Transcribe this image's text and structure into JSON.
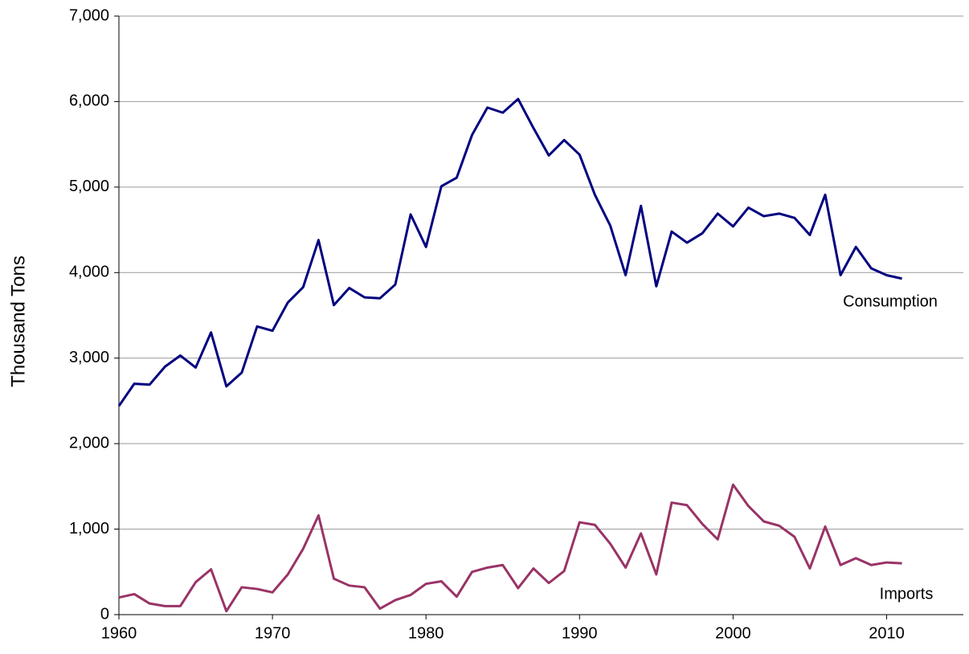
{
  "chart_data": {
    "type": "line",
    "y_label": "Thousand Tons",
    "x": [
      1960,
      1961,
      1962,
      1963,
      1964,
      1965,
      1966,
      1967,
      1968,
      1969,
      1970,
      1971,
      1972,
      1973,
      1974,
      1975,
      1976,
      1977,
      1978,
      1979,
      1980,
      1981,
      1982,
      1983,
      1984,
      1985,
      1986,
      1987,
      1988,
      1989,
      1990,
      1991,
      1992,
      1993,
      1994,
      1995,
      1996,
      1997,
      1998,
      1999,
      2000,
      2001,
      2002,
      2003,
      2004,
      2005,
      2006,
      2007,
      2008,
      2009,
      2010,
      2011
    ],
    "series": [
      {
        "name": "Consumption",
        "color": "#000080",
        "values": [
          2440,
          2700,
          2690,
          2900,
          3030,
          2890,
          3300,
          2670,
          2830,
          3370,
          3320,
          3650,
          3830,
          4380,
          3620,
          3820,
          3710,
          3700,
          3860,
          4680,
          4300,
          5010,
          5110,
          5610,
          5930,
          5870,
          6030,
          5690,
          5370,
          5550,
          5380,
          4910,
          4550,
          3970,
          4780,
          3840,
          4480,
          4350,
          4460,
          4690,
          4540,
          4760,
          4660,
          4690,
          4640,
          4440,
          4910,
          3970,
          4300,
          4050,
          3970,
          3930
        ]
      },
      {
        "name": "Imports",
        "color": "#993366",
        "values": [
          200,
          240,
          130,
          100,
          100,
          380,
          530,
          40,
          320,
          300,
          260,
          470,
          770,
          1160,
          420,
          340,
          320,
          70,
          170,
          230,
          360,
          390,
          210,
          500,
          550,
          580,
          310,
          540,
          370,
          510,
          1080,
          1050,
          830,
          550,
          950,
          470,
          1310,
          1280,
          1060,
          880,
          1520,
          1270,
          1090,
          1040,
          910,
          540,
          1030,
          580,
          660,
          580,
          610,
          600
        ]
      }
    ],
    "xlim": [
      1960,
      2015
    ],
    "xticks": [
      1960,
      1970,
      1980,
      1990,
      2000,
      2010
    ],
    "ylim": [
      0,
      7000
    ],
    "yticks": [
      0,
      {
        "value": 1000,
        "label": "1,000"
      },
      {
        "value": 2000,
        "label": "2,000"
      },
      {
        "value": 3000,
        "label": "3,000"
      },
      {
        "value": 4000,
        "label": "4,000"
      },
      {
        "value": 5000,
        "label": "5,000"
      },
      {
        "value": 6000,
        "label": "6,000"
      },
      {
        "value": 7000,
        "label": "7,000"
      }
    ],
    "grid": true
  }
}
